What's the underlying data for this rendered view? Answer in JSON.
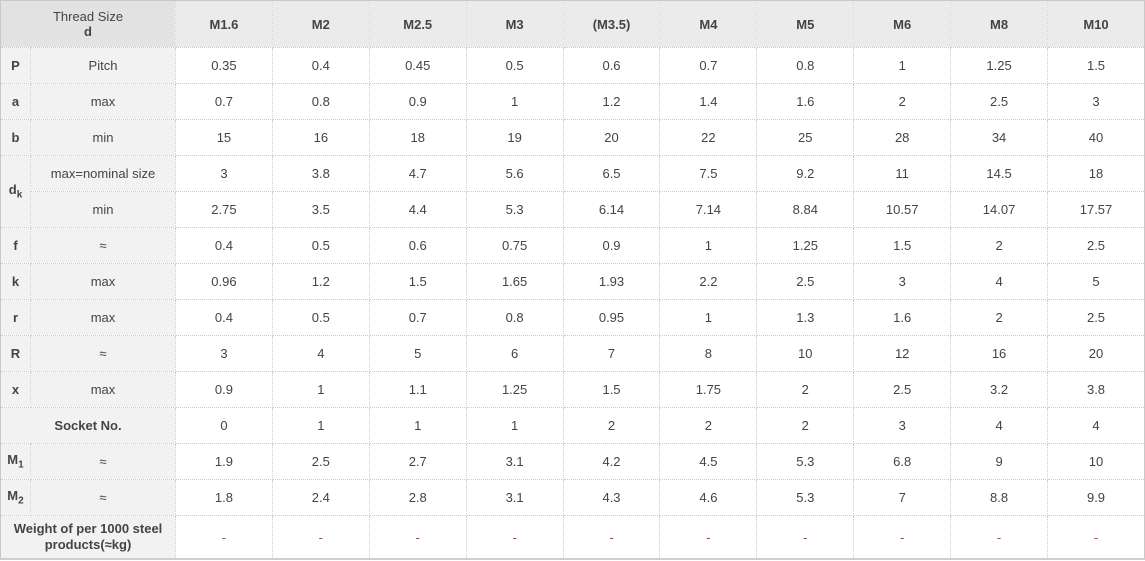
{
  "colors": {
    "header_accent_blue": "#1a67b4",
    "dash_red": "#cc3333",
    "label_bg": "#f2f2f2",
    "header_bg": "#ebebeb"
  },
  "chart_data": {
    "type": "table",
    "header": {
      "corner_line1": "Thread Size",
      "corner_line2": "d",
      "columns": [
        "M1.6",
        "M2",
        "M2.5",
        "M3",
        "(M3.5)",
        "M4",
        "M5",
        "M6",
        "M8",
        "M10"
      ]
    },
    "rows": [
      {
        "kind": "normal",
        "symbol": "P",
        "sub": "",
        "spec": "Pitch",
        "values": [
          "0.35",
          "0.4",
          "0.45",
          "0.5",
          "0.6",
          "0.7",
          "0.8",
          "1",
          "1.25",
          "1.5"
        ]
      },
      {
        "kind": "normal",
        "symbol": "a",
        "sub": "",
        "spec": "max",
        "values": [
          "0.7",
          "0.8",
          "0.9",
          "1",
          "1.2",
          "1.4",
          "1.6",
          "2",
          "2.5",
          "3"
        ]
      },
      {
        "kind": "normal",
        "symbol": "b",
        "sub": "",
        "spec": "min",
        "values": [
          "15",
          "16",
          "18",
          "19",
          "20",
          "22",
          "25",
          "28",
          "34",
          "40"
        ]
      },
      {
        "kind": "group-first",
        "symbol": "d",
        "sub": "k",
        "spec": "max=nominal size",
        "values": [
          "3",
          "3.8",
          "4.7",
          "5.6",
          "6.5",
          "7.5",
          "9.2",
          "11",
          "14.5",
          "18"
        ]
      },
      {
        "kind": "group-second",
        "spec": "min",
        "values": [
          "2.75",
          "3.5",
          "4.4",
          "5.3",
          "6.14",
          "7.14",
          "8.84",
          "10.57",
          "14.07",
          "17.57"
        ]
      },
      {
        "kind": "normal",
        "symbol": "f",
        "sub": "",
        "spec": "≈",
        "values": [
          "0.4",
          "0.5",
          "0.6",
          "0.75",
          "0.9",
          "1",
          "1.25",
          "1.5",
          "2",
          "2.5"
        ]
      },
      {
        "kind": "normal",
        "symbol": "k",
        "sub": "",
        "spec": "max",
        "values": [
          "0.96",
          "1.2",
          "1.5",
          "1.65",
          "1.93",
          "2.2",
          "2.5",
          "3",
          "4",
          "5"
        ]
      },
      {
        "kind": "normal",
        "symbol": "r",
        "sub": "",
        "spec": "max",
        "values": [
          "0.4",
          "0.5",
          "0.7",
          "0.8",
          "0.95",
          "1",
          "1.3",
          "1.6",
          "2",
          "2.5"
        ]
      },
      {
        "kind": "normal",
        "symbol": "R",
        "sub": "",
        "spec": "≈",
        "values": [
          "3",
          "4",
          "5",
          "6",
          "7",
          "8",
          "10",
          "12",
          "16",
          "20"
        ]
      },
      {
        "kind": "normal",
        "symbol": "x",
        "sub": "",
        "spec": "max",
        "values": [
          "0.9",
          "1",
          "1.1",
          "1.25",
          "1.5",
          "1.75",
          "2",
          "2.5",
          "3.2",
          "3.8"
        ]
      },
      {
        "kind": "span",
        "label": "Socket No.",
        "style": "small",
        "values": [
          "0",
          "1",
          "1",
          "1",
          "2",
          "2",
          "2",
          "3",
          "4",
          "4"
        ]
      },
      {
        "kind": "normal",
        "symbol": "M",
        "sub": "1",
        "spec": "≈",
        "values": [
          "1.9",
          "2.5",
          "2.7",
          "3.1",
          "4.2",
          "4.5",
          "5.3",
          "6.8",
          "9",
          "10"
        ]
      },
      {
        "kind": "normal",
        "symbol": "M",
        "sub": "2",
        "spec": "≈",
        "values": [
          "1.8",
          "2.4",
          "2.8",
          "3.1",
          "4.3",
          "4.6",
          "5.3",
          "7",
          "8.8",
          "9.9"
        ]
      },
      {
        "kind": "span",
        "label": "Weight of per 1000 steel products(≈kg)",
        "style": "weight",
        "red_values": true,
        "values": [
          "-",
          "-",
          "-",
          "-",
          "-",
          "-",
          "-",
          "-",
          "-",
          "-"
        ]
      }
    ]
  }
}
